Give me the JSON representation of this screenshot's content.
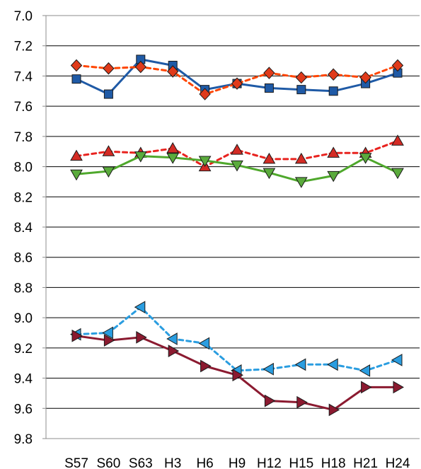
{
  "chart_data": {
    "type": "line",
    "title": "",
    "xlabel": "",
    "ylabel": "",
    "y_inverted": true,
    "ylim": [
      7.0,
      9.8
    ],
    "ytick_step": 0.2,
    "ytick_labels": [
      "7.0",
      "7.2",
      "7.4",
      "7.6",
      "7.8",
      "8.0",
      "8.2",
      "8.4",
      "8.6",
      "8.8",
      "9.0",
      "9.2",
      "9.4",
      "9.6",
      "9.8"
    ],
    "grid": "horizontal",
    "legend": "none",
    "categories": [
      "S57",
      "S60",
      "S63",
      "H3",
      "H6",
      "H9",
      "H12",
      "H15",
      "H18",
      "H21",
      "H24"
    ],
    "series": [
      {
        "color": "#1f5aa6",
        "line_style": "solid",
        "marker": "square",
        "marker_color": "#1f5aa6",
        "values": [
          7.42,
          7.52,
          7.29,
          7.33,
          7.49,
          7.45,
          7.48,
          7.49,
          7.5,
          7.45,
          7.38
        ]
      },
      {
        "color": "#ff4500",
        "line_style": "dashed",
        "marker": "diamond",
        "marker_color": "#e03a1a",
        "values": [
          7.33,
          7.35,
          7.34,
          7.37,
          7.52,
          7.45,
          7.38,
          7.41,
          7.39,
          7.41,
          7.33
        ]
      },
      {
        "color": "#e8231f",
        "line_style": "dashed",
        "marker": "triangle-up",
        "marker_color": "#d42b24",
        "values": [
          7.93,
          7.9,
          7.91,
          7.88,
          8.0,
          7.89,
          7.95,
          7.95,
          7.91,
          7.91,
          7.83
        ]
      },
      {
        "color": "#4fa82c",
        "line_style": "solid",
        "marker": "triangle-down",
        "marker_color": "#5aab3c",
        "values": [
          8.05,
          8.03,
          7.93,
          7.94,
          7.96,
          7.99,
          8.04,
          8.1,
          8.06,
          7.94,
          8.04
        ]
      },
      {
        "color": "#2a9de0",
        "line_style": "dashed",
        "marker": "triangle-left",
        "marker_color": "#2a9de0",
        "values": [
          9.11,
          9.1,
          8.93,
          9.14,
          9.17,
          9.35,
          9.34,
          9.31,
          9.31,
          9.35,
          9.28
        ]
      },
      {
        "color": "#8b1a30",
        "line_style": "solid",
        "marker": "triangle-right",
        "marker_color": "#8b1a30",
        "values": [
          9.12,
          9.15,
          9.13,
          9.22,
          9.32,
          9.38,
          9.55,
          9.56,
          9.61,
          9.46,
          9.46
        ]
      }
    ]
  }
}
